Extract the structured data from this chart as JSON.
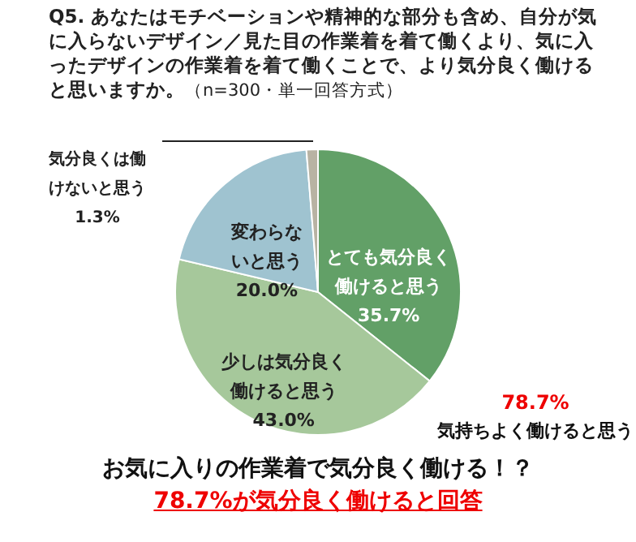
{
  "chart_data": {
    "type": "pie",
    "title": "Q5. あなたはモチベーションや精神的な部分も含め、自分が気に入らないデザイン／見た目の作業着を着て働くより、気に入ったデザインの作業着を着て働くことで、より気分良く働けると思いますか。",
    "subtitle": "（n=300・単一回答方式）",
    "categories": [
      "とても気分良く働けると思う",
      "少しは気分良く働けると思う",
      "変わらないと思う",
      "気分良くは働けないと思う"
    ],
    "values": [
      35.7,
      43.0,
      20.0,
      1.3
    ],
    "value_labels": [
      "35.7%",
      "43.0%",
      "20.0%",
      "1.3%"
    ],
    "colors": [
      "#62a067",
      "#a6c89b",
      "#9fc3d0",
      "#b8b3a3"
    ],
    "annotations": [
      "78.7%",
      "気持ちよく働けると思う",
      "お気に入りの作業着で気分良く働ける！？",
      "78.7%が気分良く働けると回答"
    ]
  }
}
